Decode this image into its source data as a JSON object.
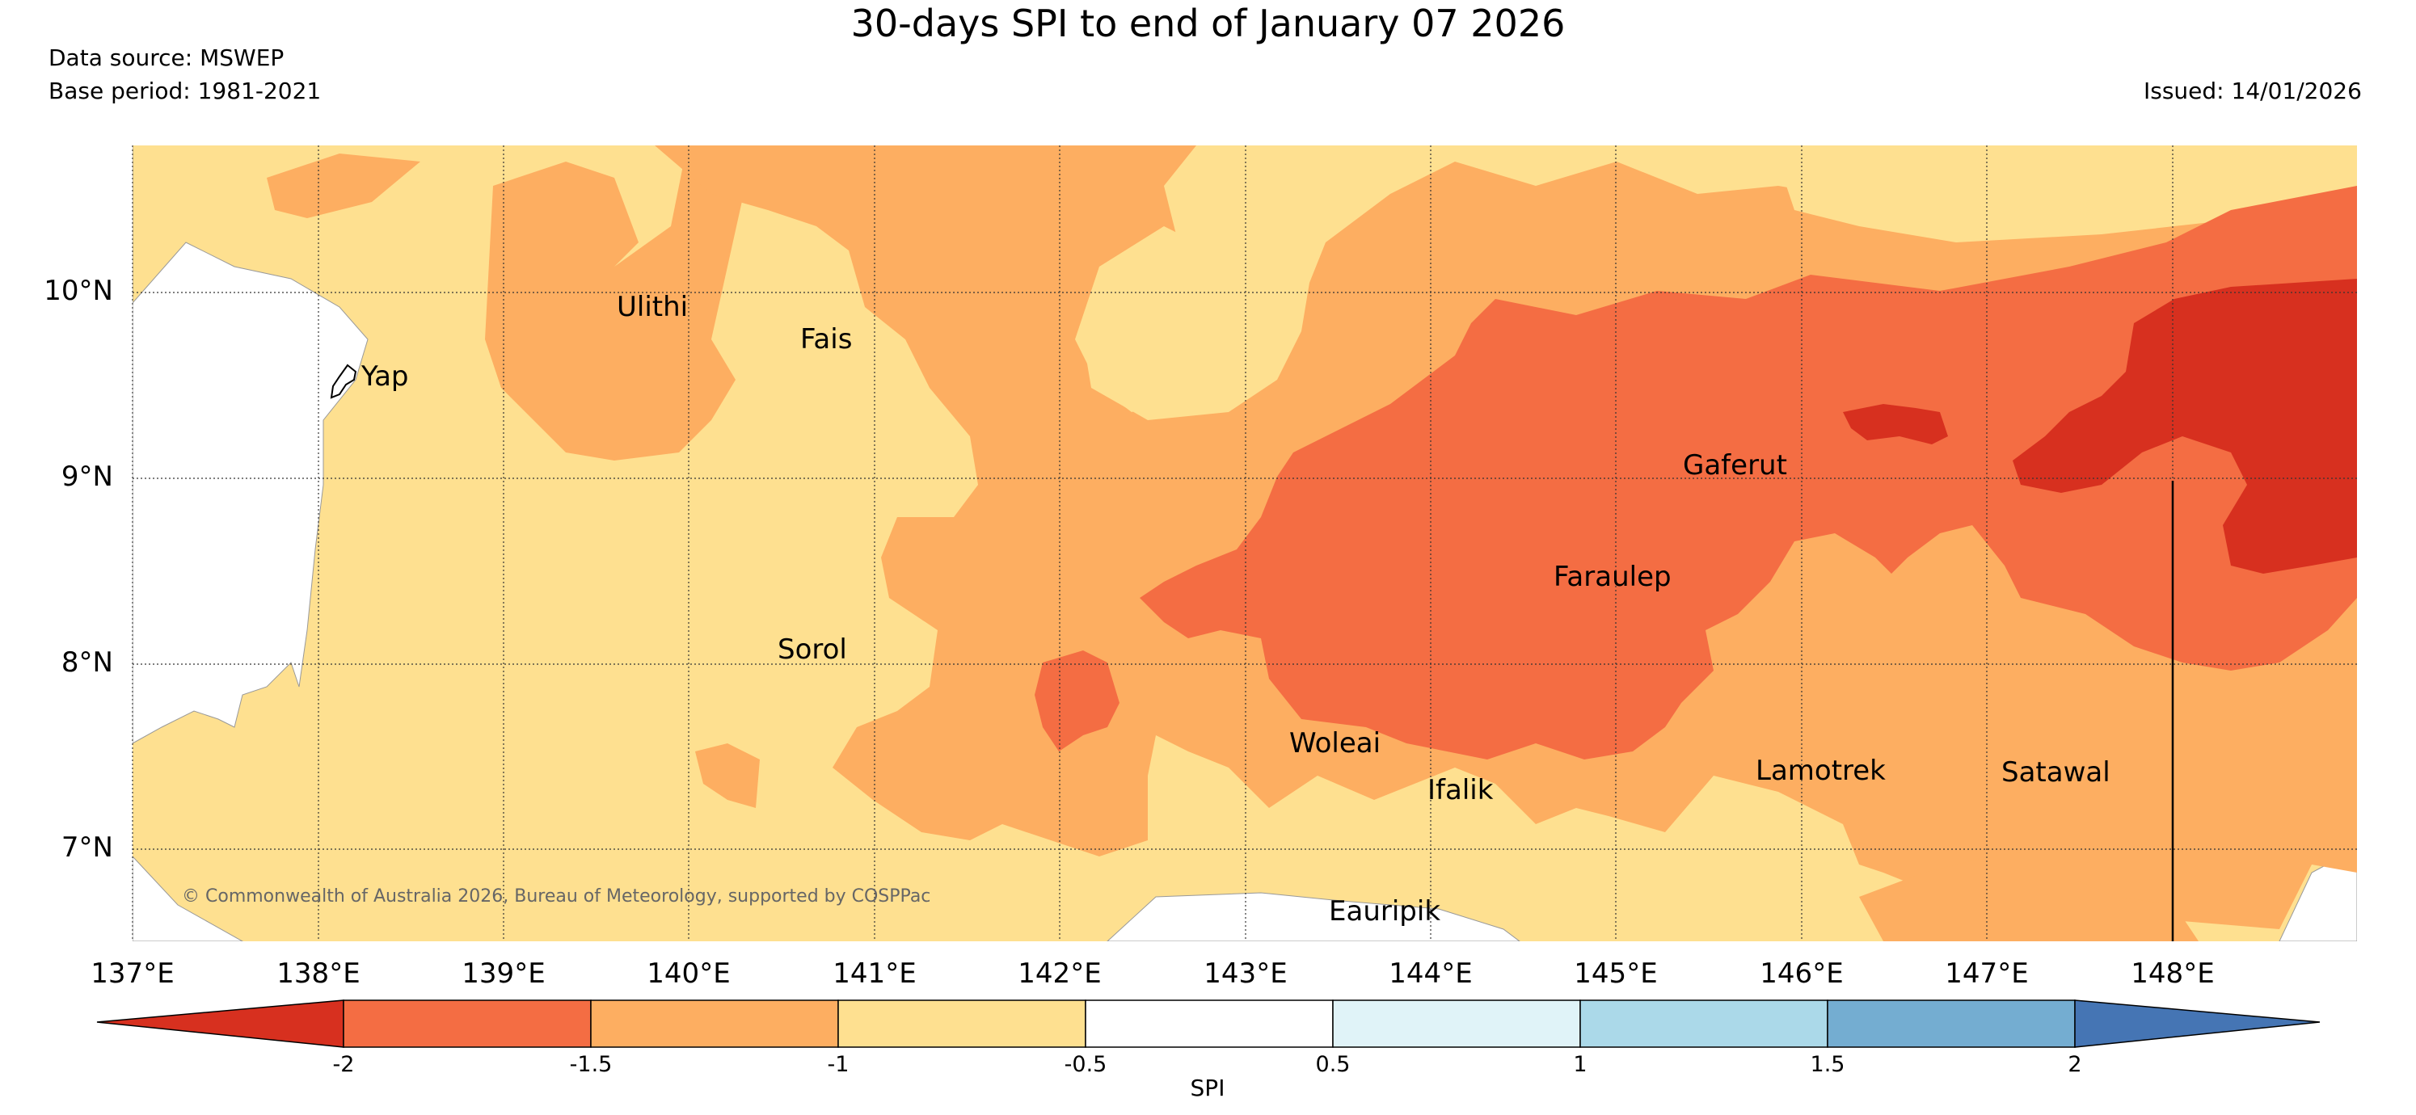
{
  "title": "30-days SPI to end of January 07 2026",
  "data_source": "Data source: MSWEP",
  "base_period": "Base period: 1981-2021",
  "issued": "Issued: 14/01/2026",
  "copyright": "© Commonwealth of Australia 2026, Bureau of Meteorology, supported by COSPPac",
  "lat_labels": [
    "10°N",
    "9°N",
    "8°N",
    "7°N"
  ],
  "lon_labels": [
    "137°E",
    "138°E",
    "139°E",
    "140°E",
    "141°E",
    "142°E",
    "143°E",
    "144°E",
    "145°E",
    "146°E",
    "147°E",
    "148°E"
  ],
  "places": [
    {
      "name": "Ulithi",
      "lon": 139.8,
      "lat": 9.95
    },
    {
      "name": "Fais",
      "lon": 140.5,
      "lat": 9.76
    },
    {
      "name": "Yap",
      "lon": 138.1,
      "lat": 9.54
    },
    {
      "name": "Gaferut",
      "lon": 145.4,
      "lat": 9.23
    },
    {
      "name": "Faraulep",
      "lon": 144.5,
      "lat": 8.6
    },
    {
      "name": "Sorol",
      "lon": 140.4,
      "lat": 8.14
    },
    {
      "name": "Woleai",
      "lon": 143.9,
      "lat": 7.36
    },
    {
      "name": "Ifalik",
      "lon": 144.45,
      "lat": 7.25
    },
    {
      "name": "Lamotrek",
      "lon": 146.38,
      "lat": 7.5
    },
    {
      "name": "Satawal",
      "lon": 147.03,
      "lat": 7.37
    },
    {
      "name": "Eauripik",
      "lon": 143.05,
      "lat": 6.69
    }
  ],
  "colorbar": {
    "title": "SPI",
    "ticks": [
      "-2",
      "-1.5",
      "-1",
      "-0.5",
      "0.5",
      "1",
      "1.5",
      "2"
    ],
    "colors": [
      "#d7301f",
      "#f46d43",
      "#fdae61",
      "#fee090",
      "#ffffff",
      "#e0f3f8",
      "#abd9e9",
      "#74add1",
      "#4575b4"
    ]
  }
}
